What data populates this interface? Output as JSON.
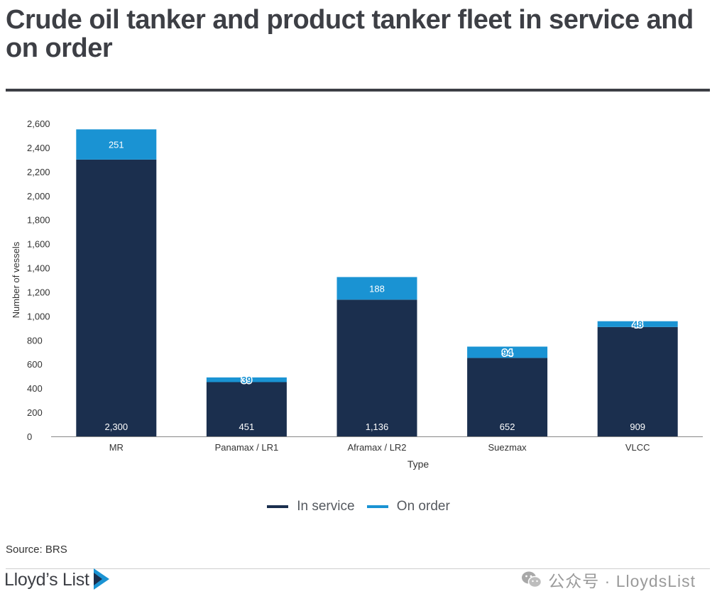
{
  "title": "Crude oil tanker and product tanker fleet in service and on order",
  "source": "Source: BRS",
  "brand": "Lloyd’s List",
  "watermark": "公众号 · LloydsList",
  "colors": {
    "in_service": "#1b2f4e",
    "on_order": "#1a93d3",
    "title": "#3d3f45"
  },
  "chart_data": {
    "type": "bar",
    "stacked": true,
    "categories": [
      "MR",
      "Panamax / LR1",
      "Aframax / LR2",
      "Suezmax",
      "VLCC"
    ],
    "series": [
      {
        "name": "In service",
        "values": [
          2300,
          451,
          1136,
          652,
          909
        ]
      },
      {
        "name": "On order",
        "values": [
          251,
          39,
          188,
          94,
          48
        ]
      }
    ],
    "xlabel": "Type",
    "ylabel": "Number of vessels",
    "ylim": [
      0,
      2600
    ],
    "yticks": [
      "0",
      "200",
      "400",
      "600",
      "800",
      "1,000",
      "1,200",
      "1,400",
      "1,600",
      "1,800",
      "2,000",
      "2,200",
      "2,400",
      "2,600"
    ],
    "value_labels": {
      "In service": [
        "2,300",
        "451",
        "1,136",
        "652",
        "909"
      ],
      "On order": [
        "251",
        "39",
        "188",
        "94",
        "48"
      ]
    },
    "legend_position": "bottom",
    "grid": false
  }
}
